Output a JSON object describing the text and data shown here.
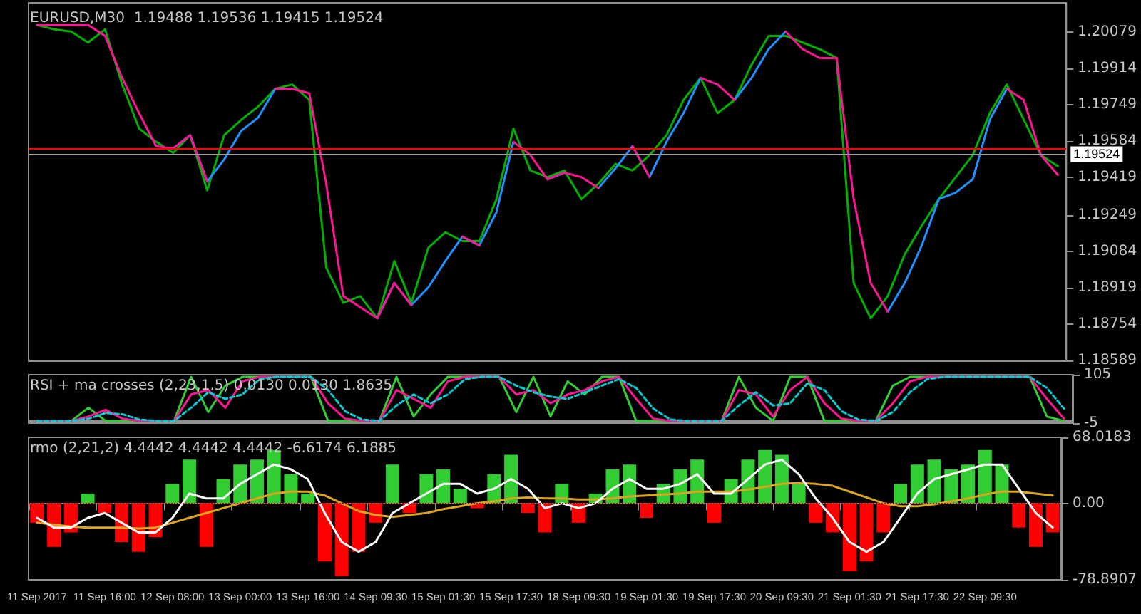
{
  "chart_data": [
    {
      "type": "line",
      "title": "EURUSD,M30  1.19488 1.19536 1.19415 1.19524",
      "marker": "none",
      "tick_labels": "y",
      "categories": [
        null,
        null,
        null,
        null,
        null,
        null,
        null,
        null,
        null,
        null,
        null,
        null,
        null,
        null,
        null,
        null,
        null,
        null,
        null,
        null,
        null,
        null,
        null,
        null,
        null,
        null,
        null,
        null,
        null,
        null,
        null,
        null,
        null,
        null,
        null,
        null,
        null,
        null,
        null,
        null,
        null,
        null,
        null,
        null,
        null,
        null,
        null,
        null,
        null,
        null,
        null,
        null,
        null,
        null,
        null,
        null,
        null,
        null,
        null,
        null,
        null
      ],
      "series": [
        {
          "color": "#00b000",
          "values": [
            1.2011,
            1.2009,
            1.2008,
            1.2003,
            1.2009,
            1.1984,
            1.1964,
            1.1958,
            1.1953,
            1.1961,
            1.1936,
            1.1961,
            1.1968,
            1.1974,
            1.1982,
            1.1984,
            1.1977,
            1.1901,
            1.1885,
            1.1888,
            1.1878,
            1.1904,
            1.1885,
            1.191,
            1.1917,
            1.1913,
            1.1913,
            1.1932,
            1.1964,
            1.1945,
            1.1942,
            1.1945,
            1.1932,
            1.1939,
            1.1948,
            1.1945,
            1.1952,
            1.1961,
            1.1977,
            1.1987,
            1.1971,
            1.1977,
            1.1993,
            1.2006,
            1.2006,
            1.2003,
            1.2,
            1.1996,
            1.1894,
            1.1878,
            1.1888,
            1.1907,
            1.192,
            1.1932,
            1.1942,
            1.1952,
            1.1971,
            1.1984,
            1.1968,
            1.1952,
            1.1947
          ]
        },
        {
          "color": "#1e90ff",
          "values": [
            null,
            null,
            null,
            null,
            null,
            null,
            null,
            null,
            1.1955,
            1.1961,
            1.194,
            1.195,
            1.1963,
            1.1969,
            1.1982,
            null,
            null,
            null,
            null,
            null,
            1.1878,
            1.1894,
            1.1884,
            1.1892,
            1.1904,
            1.1915,
            1.1911,
            1.1926,
            1.1958,
            null,
            1.1941,
            1.1944,
            null,
            1.1937,
            1.1946,
            1.1956,
            1.1942,
            1.1958,
            1.1971,
            1.1987,
            null,
            1.1977,
            1.1987,
            1.2,
            1.2008,
            null,
            null,
            null,
            null,
            null,
            1.1881,
            1.1894,
            1.1911,
            1.1932,
            1.1935,
            1.1941,
            1.1968,
            1.1982,
            null,
            null,
            null
          ]
        },
        {
          "color": "#ff1493",
          "values": [
            1.2011,
            1.2011,
            1.2011,
            1.2011,
            1.2006,
            1.1987,
            1.1971,
            1.1956,
            1.1955,
            1.1961,
            1.194,
            null,
            null,
            null,
            1.1982,
            1.1982,
            1.198,
            1.1939,
            1.1888,
            1.1883,
            1.1878,
            1.1894,
            1.1884,
            null,
            null,
            1.1915,
            1.1911,
            null,
            1.1958,
            1.1952,
            1.1941,
            1.1944,
            1.1942,
            1.1937,
            null,
            1.1956,
            1.1942,
            null,
            null,
            1.1987,
            1.1984,
            1.1977,
            null,
            null,
            1.2008,
            1.2,
            1.1996,
            1.1996,
            1.1932,
            1.1894,
            1.1881,
            null,
            null,
            null,
            null,
            null,
            null,
            1.1982,
            1.1977,
            1.1952,
            1.1943
          ]
        }
      ],
      "ylim": [
        1.18589,
        1.2021
      ],
      "yticks": [
        1.20079,
        1.19914,
        1.19749,
        1.19584,
        1.19419,
        1.19249,
        1.19084,
        1.18919,
        1.18754,
        1.18589
      ],
      "ref_lines": [
        {
          "axis": "y",
          "value": 1.1955,
          "color": "#ff0000"
        },
        {
          "axis": "y",
          "value": 1.19524,
          "label": "1.19524",
          "color": "#a0a0a0"
        }
      ]
    },
    {
      "type": "line",
      "title": "RSI + ma crosses (2,23,1.5) 0.0130 0.0130 1.8635",
      "marker": "none",
      "tick_labels": "y",
      "categories": [
        null,
        null,
        null,
        null,
        null,
        null,
        null,
        null,
        null,
        null,
        null,
        null,
        null,
        null,
        null,
        null,
        null,
        null,
        null,
        null,
        null,
        null,
        null,
        null,
        null,
        null,
        null,
        null,
        null,
        null,
        null,
        null,
        null,
        null,
        null,
        null,
        null,
        null,
        null,
        null,
        null,
        null,
        null,
        null,
        null,
        null,
        null,
        null,
        null,
        null,
        null,
        null,
        null,
        null,
        null,
        null,
        null,
        null,
        null,
        null,
        null
      ],
      "series": [
        {
          "color": "#32cd32",
          "values": [
            0,
            0,
            0,
            30,
            0,
            0,
            0,
            0,
            0,
            100,
            20,
            80,
            100,
            100,
            100,
            100,
            100,
            0,
            0,
            0,
            0,
            100,
            10,
            60,
            100,
            100,
            100,
            100,
            20,
            100,
            10,
            90,
            60,
            100,
            100,
            0,
            0,
            0,
            0,
            0,
            0,
            100,
            30,
            0,
            100,
            100,
            0,
            0,
            0,
            0,
            80,
            100,
            100,
            100,
            100,
            100,
            100,
            100,
            100,
            10,
            0
          ]
        },
        {
          "color": "#ff1493",
          "values": [
            0,
            0,
            0,
            10,
            25,
            5,
            0,
            0,
            0,
            60,
            70,
            30,
            90,
            100,
            100,
            100,
            100,
            40,
            5,
            0,
            0,
            70,
            50,
            30,
            90,
            100,
            100,
            100,
            60,
            70,
            40,
            60,
            70,
            90,
            100,
            50,
            5,
            0,
            0,
            0,
            0,
            70,
            60,
            10,
            70,
            100,
            40,
            5,
            0,
            0,
            40,
            90,
            100,
            100,
            100,
            100,
            100,
            100,
            100,
            50,
            5
          ]
        },
        {
          "color": "#00ced1",
          "line_style": "dashed",
          "values": [
            0,
            0,
            0,
            5,
            18,
            15,
            3,
            0,
            0,
            30,
            65,
            50,
            60,
            95,
            100,
            100,
            100,
            70,
            22,
            3,
            0,
            35,
            60,
            40,
            60,
            95,
            100,
            100,
            80,
            65,
            55,
            50,
            65,
            80,
            95,
            75,
            28,
            3,
            0,
            0,
            0,
            35,
            65,
            35,
            40,
            85,
            70,
            22,
            3,
            0,
            20,
            65,
            95,
            100,
            100,
            100,
            100,
            100,
            100,
            75,
            28
          ]
        }
      ],
      "ylim": [
        -5,
        105
      ],
      "yticks": [
        105,
        -5
      ]
    },
    {
      "type": "bar",
      "title": "rmo (2,21,2) 4.4442 4.4442 4.4442 -6.6174 6.1885",
      "marker": "none",
      "categories": [
        "11 Sep 2017",
        null,
        null,
        null,
        "11 Sep 16:00",
        null,
        null,
        null,
        "12 Sep 08:00",
        null,
        null,
        null,
        "13 Sep 00:00",
        null,
        null,
        null,
        "13 Sep 16:00",
        null,
        null,
        null,
        "14 Sep 09:30",
        null,
        null,
        null,
        "15 Sep 01:30",
        null,
        null,
        null,
        "15 Sep 17:30",
        null,
        null,
        null,
        "18 Sep 09:30",
        null,
        null,
        null,
        "19 Sep 01:30",
        null,
        null,
        null,
        "19 Sep 17:30",
        null,
        null,
        null,
        "20 Sep 09:30",
        null,
        null,
        null,
        "21 Sep 01:30",
        null,
        null,
        null,
        "21 Sep 17:30",
        null,
        null,
        null,
        "22 Sep 09:30",
        null,
        null,
        null,
        null
      ],
      "series": [
        {
          "values": [
            -20,
            -45,
            -30,
            10,
            -10,
            -40,
            -50,
            -35,
            20,
            45,
            -45,
            25,
            40,
            45,
            55,
            30,
            10,
            -60,
            -75,
            -50,
            -20,
            40,
            -10,
            30,
            35,
            15,
            -5,
            30,
            50,
            -10,
            -30,
            20,
            -20,
            10,
            35,
            40,
            -15,
            20,
            35,
            45,
            -20,
            25,
            45,
            55,
            50,
            20,
            -20,
            -30,
            -70,
            -60,
            -30,
            20,
            40,
            45,
            35,
            40,
            55,
            40,
            -25,
            -45,
            -30
          ],
          "colors": [
            "#ff0000",
            "#ff0000",
            "#ff0000",
            "#32cd32",
            "#ff0000",
            "#ff0000",
            "#ff0000",
            "#ff0000",
            "#32cd32",
            "#32cd32",
            "#ff0000",
            "#32cd32",
            "#32cd32",
            "#32cd32",
            "#32cd32",
            "#32cd32",
            "#32cd32",
            "#ff0000",
            "#ff0000",
            "#ff0000",
            "#ff0000",
            "#32cd32",
            "#ff0000",
            "#32cd32",
            "#32cd32",
            "#32cd32",
            "#ff0000",
            "#32cd32",
            "#32cd32",
            "#ff0000",
            "#ff0000",
            "#32cd32",
            "#ff0000",
            "#32cd32",
            "#32cd32",
            "#32cd32",
            "#ff0000",
            "#32cd32",
            "#32cd32",
            "#32cd32",
            "#ff0000",
            "#32cd32",
            "#32cd32",
            "#32cd32",
            "#32cd32",
            "#32cd32",
            "#ff0000",
            "#ff0000",
            "#ff0000",
            "#ff0000",
            "#ff0000",
            "#32cd32",
            "#32cd32",
            "#32cd32",
            "#32cd32",
            "#32cd32",
            "#32cd32",
            "#32cd32",
            "#ff0000",
            "#ff0000",
            "#ff0000"
          ]
        },
        {
          "type": "line",
          "color": "#daa520",
          "values": [
            -20,
            -22,
            -24,
            -25,
            -25,
            -25,
            -26,
            -25,
            -20,
            -15,
            -10,
            -5,
            0,
            5,
            10,
            12,
            12,
            8,
            0,
            -8,
            -12,
            -14,
            -12,
            -10,
            -6,
            -3,
            0,
            2,
            5,
            6,
            5,
            5,
            4,
            4,
            5,
            7,
            8,
            9,
            10,
            12,
            12,
            12,
            14,
            17,
            20,
            21,
            20,
            18,
            12,
            6,
            0,
            -3,
            -3,
            -1,
            2,
            5,
            9,
            12,
            12,
            10,
            8
          ]
        },
        {
          "type": "line",
          "color": "#ffffff",
          "values": [
            -15,
            -25,
            -25,
            -15,
            -10,
            -20,
            -30,
            -30,
            -15,
            10,
            5,
            5,
            20,
            30,
            40,
            35,
            25,
            -10,
            -40,
            -50,
            -40,
            -10,
            0,
            10,
            20,
            20,
            10,
            15,
            25,
            15,
            -5,
            0,
            -5,
            0,
            15,
            25,
            15,
            15,
            20,
            30,
            10,
            10,
            25,
            40,
            45,
            30,
            5,
            -15,
            -40,
            -50,
            -40,
            -15,
            10,
            25,
            30,
            35,
            40,
            40,
            15,
            -10,
            -25
          ]
        }
      ],
      "ylim": [
        -78.8907,
        68.0183
      ],
      "yticks": [
        68.0183,
        {
          "value": 0,
          "label": "0.00"
        },
        -78.8907
      ],
      "ref_lines": [
        {
          "axis": "y",
          "value": 0,
          "color": "#a01010",
          "line_style": "dotted"
        }
      ]
    }
  ]
}
